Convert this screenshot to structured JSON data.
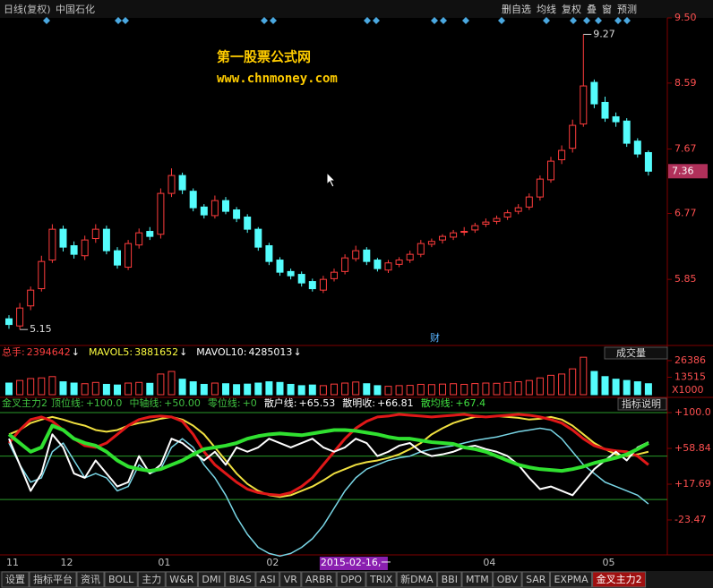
{
  "toolbar": {
    "period": "日线(复权)",
    "name": "中国石化",
    "buttons": [
      "删自选",
      "均线",
      "复权",
      "叠",
      "窗",
      "预测"
    ]
  },
  "watermark": [
    "第一股票公式网",
    "www.chnmoney.com"
  ],
  "chart_data": [
    {
      "type": "candlestick",
      "note": "财",
      "categories": [
        "11",
        null,
        null,
        null,
        null,
        "12",
        null,
        null,
        null,
        null,
        null,
        null,
        null,
        null,
        "01",
        null,
        null,
        null,
        null,
        null,
        null,
        null,
        null,
        null,
        "02",
        null,
        null,
        null,
        null,
        "2015-02-16,一",
        null,
        null,
        null,
        null,
        null,
        null,
        null,
        null,
        null,
        null,
        null,
        null,
        null,
        null,
        "04",
        null,
        null,
        null,
        null,
        null,
        null,
        null,
        null,
        null,
        null,
        "05",
        null,
        null,
        null,
        null
      ],
      "open": [
        5.3,
        5.2,
        5.48,
        5.72,
        6.12,
        6.55,
        6.32,
        6.18,
        6.42,
        6.55,
        6.25,
        6.02,
        6.33,
        6.52,
        6.48,
        7.05,
        7.3,
        7.08,
        6.86,
        6.74,
        6.95,
        6.82,
        6.72,
        6.55,
        6.32,
        6.12,
        5.96,
        5.92,
        5.82,
        5.7,
        5.86,
        5.96,
        6.14,
        6.26,
        6.12,
        5.98,
        6.06,
        6.12,
        6.2,
        6.34,
        6.4,
        6.44,
        6.52,
        6.54,
        6.62,
        6.66,
        6.72,
        6.8,
        6.86,
        7.0,
        7.24,
        7.52,
        7.68,
        8.02,
        8.6,
        8.32,
        8.12,
        8.06,
        7.78,
        7.62
      ],
      "high": [
        5.35,
        5.52,
        5.75,
        6.18,
        6.62,
        6.6,
        6.38,
        6.46,
        6.62,
        6.6,
        6.3,
        6.4,
        6.56,
        6.58,
        7.12,
        7.4,
        7.34,
        7.12,
        6.9,
        7.02,
        7.0,
        6.86,
        6.76,
        6.58,
        6.36,
        6.16,
        6.0,
        5.96,
        5.86,
        5.9,
        6.0,
        6.2,
        6.32,
        6.3,
        6.15,
        6.12,
        6.16,
        6.25,
        6.4,
        6.42,
        6.48,
        6.54,
        6.58,
        6.64,
        6.7,
        6.74,
        6.82,
        6.9,
        7.05,
        7.3,
        7.56,
        7.72,
        8.08,
        9.27,
        8.64,
        8.4,
        8.18,
        8.1,
        7.82,
        7.65
      ],
      "low": [
        5.16,
        5.15,
        5.42,
        5.68,
        6.08,
        6.24,
        6.14,
        6.12,
        6.36,
        6.2,
        6.0,
        5.98,
        6.28,
        6.4,
        6.42,
        7.0,
        7.04,
        6.8,
        6.7,
        6.7,
        6.76,
        6.65,
        6.5,
        6.25,
        6.05,
        5.9,
        5.85,
        5.75,
        5.68,
        5.66,
        5.82,
        5.92,
        6.1,
        6.05,
        5.96,
        5.94,
        6.02,
        6.08,
        6.16,
        6.3,
        6.35,
        6.4,
        6.46,
        6.5,
        6.58,
        6.62,
        6.68,
        6.76,
        6.82,
        6.95,
        7.2,
        7.46,
        7.62,
        7.98,
        8.24,
        8.05,
        7.98,
        7.7,
        7.55,
        7.3
      ],
      "close": [
        5.22,
        5.45,
        5.7,
        6.1,
        6.55,
        6.3,
        6.2,
        6.4,
        6.55,
        6.25,
        6.05,
        6.35,
        6.5,
        6.45,
        7.05,
        7.3,
        7.1,
        6.85,
        6.75,
        6.95,
        6.8,
        6.7,
        6.55,
        6.3,
        6.1,
        5.95,
        5.9,
        5.8,
        5.72,
        5.85,
        5.95,
        6.15,
        6.25,
        6.1,
        6.0,
        6.08,
        6.12,
        6.2,
        6.35,
        6.38,
        6.45,
        6.5,
        6.52,
        6.6,
        6.65,
        6.7,
        6.78,
        6.85,
        7.0,
        7.25,
        7.5,
        7.65,
        8.0,
        8.55,
        8.3,
        8.1,
        8.05,
        7.75,
        7.6,
        7.36
      ],
      "ylim": [
        4.94,
        9.5
      ],
      "yticks": [
        5.85,
        6.77,
        7.67,
        8.59,
        {
          "value": 9.5,
          "label": "9.50"
        }
      ],
      "up_color": "#ff3c3c",
      "down_color": "#54fcfc"
    },
    {
      "type": "bar",
      "selector": "成交量",
      "unit": "X1000",
      "header": [
        {
          "name": "总手:",
          "value": 2394642,
          "arrow": "↓",
          "color": "#ff4040"
        },
        {
          "name": "MAVOL5:",
          "value": 3881652,
          "arrow": "↓",
          "color": "#ffff40"
        },
        {
          "name": "MAVOL10:",
          "value": 4285013,
          "arrow": "↓",
          "color": "#ffffff"
        }
      ],
      "values": [
        9000,
        11000,
        12500,
        13000,
        14000,
        10000,
        9000,
        8500,
        9500,
        8000,
        7500,
        9000,
        9500,
        8800,
        16000,
        18000,
        12000,
        10000,
        8000,
        9000,
        8500,
        7800,
        8200,
        9000,
        10000,
        9500,
        8000,
        7000,
        7500,
        7000,
        8200,
        9000,
        9800,
        8500,
        7000,
        6500,
        7000,
        7200,
        8000,
        7800,
        8200,
        8500,
        8000,
        8600,
        9000,
        8800,
        9500,
        10000,
        11000,
        13000,
        15000,
        16000,
        20000,
        29000,
        18000,
        14000,
        12000,
        11000,
        10000,
        8500
      ],
      "ylim": [
        0,
        29800
      ],
      "yticks": [
        13515,
        26386
      ]
    },
    {
      "type": "line",
      "title": "金叉主力2",
      "button": "指标说明",
      "header": [
        {
          "name": "顶位线:",
          "value": 100,
          "label": "+100.0",
          "color": "#40c040",
          "ref": true
        },
        {
          "name": "中轴线:",
          "value": 50,
          "label": "+50.00",
          "color": "#40c040",
          "ref": true
        },
        {
          "name": "零位线:",
          "value": 0,
          "label": "+0",
          "color": "#40c040",
          "ref": true
        },
        {
          "name": "散户线:",
          "value": 65.53,
          "label": "+65.53",
          "color": "#ffffff"
        },
        {
          "name": "散明收:",
          "value": 66.81,
          "label": "+66.81",
          "color": "#ffffff"
        },
        {
          "name": "散均线:",
          "value": 67.4,
          "label": "+67.4",
          "color": "#40e040"
        }
      ],
      "series": [
        {
          "color": "#79d6e6",
          "width": 1.5,
          "values": [
            65,
            40,
            20,
            25,
            55,
            65,
            45,
            25,
            30,
            25,
            10,
            15,
            40,
            30,
            35,
            60,
            70,
            60,
            40,
            25,
            5,
            -20,
            -40,
            -55,
            -62,
            -65,
            -62,
            -55,
            -45,
            -30,
            -10,
            10,
            25,
            35,
            40,
            45,
            48,
            50,
            55,
            58,
            60,
            62,
            65,
            68,
            70,
            72,
            75,
            78,
            80,
            82,
            80,
            70,
            55,
            40,
            30,
            20,
            15,
            10,
            5,
            -5
          ]
        },
        {
          "color": "#f0e040",
          "width": 2,
          "values": [
            75,
            80,
            88,
            92,
            95,
            92,
            88,
            85,
            80,
            78,
            80,
            85,
            88,
            90,
            93,
            95,
            92,
            85,
            75,
            60,
            45,
            30,
            18,
            10,
            5,
            3,
            5,
            10,
            15,
            22,
            30,
            35,
            40,
            43,
            45,
            48,
            52,
            58,
            65,
            75,
            82,
            88,
            92,
            95,
            95,
            96,
            95,
            94,
            92,
            93,
            95,
            92,
            85,
            75,
            65,
            58,
            52,
            50,
            52,
            55
          ]
        },
        {
          "color": "#e01818",
          "width": 3,
          "values": [
            65,
            80,
            92,
            95,
            90,
            80,
            70,
            62,
            60,
            65,
            75,
            85,
            92,
            95,
            96,
            95,
            90,
            75,
            55,
            40,
            30,
            20,
            12,
            8,
            6,
            5,
            8,
            15,
            25,
            40,
            55,
            70,
            82,
            90,
            95,
            96,
            98,
            97,
            96,
            95,
            96,
            97,
            98,
            96,
            95,
            96,
            97,
            98,
            97,
            95,
            92,
            88,
            80,
            70,
            62,
            58,
            56,
            55,
            50,
            40
          ]
        },
        {
          "color": "#ffffff",
          "width": 2,
          "values": [
            70,
            40,
            10,
            30,
            75,
            60,
            30,
            25,
            45,
            30,
            15,
            20,
            50,
            30,
            40,
            70,
            65,
            55,
            45,
            55,
            40,
            60,
            55,
            60,
            70,
            65,
            60,
            65,
            70,
            60,
            55,
            60,
            70,
            65,
            50,
            55,
            62,
            65,
            55,
            50,
            52,
            55,
            60,
            62,
            58,
            55,
            50,
            40,
            25,
            12,
            15,
            10,
            5,
            20,
            35,
            45,
            55,
            45,
            60,
            66
          ]
        },
        {
          "color": "#30e030",
          "width": 4,
          "values": [
            75,
            65,
            55,
            60,
            85,
            80,
            70,
            65,
            62,
            55,
            45,
            38,
            35,
            33,
            35,
            40,
            45,
            52,
            58,
            60,
            62,
            65,
            70,
            73,
            75,
            76,
            75,
            74,
            76,
            78,
            80,
            80,
            79,
            77,
            75,
            72,
            70,
            70,
            68,
            66,
            65,
            64,
            60,
            58,
            55,
            50,
            45,
            40,
            37,
            35,
            34,
            33,
            35,
            38,
            42,
            45,
            48,
            52,
            58,
            65
          ]
        }
      ],
      "ylim": [
        -65.7,
        109.3
      ],
      "yticks": [
        {
          "value": -23.47,
          "label": "-23.47"
        },
        {
          "value": 17.69,
          "label": "+17.69"
        },
        {
          "value": 58.84,
          "label": "+58.84"
        },
        {
          "value": 100,
          "label": "+100.0"
        }
      ]
    }
  ],
  "tabs": [
    "设置",
    "指标平台",
    "资讯",
    "BOLL",
    "主力",
    "W&R",
    "DMI",
    "BIAS",
    "ASI",
    "VR",
    "ARBR",
    "DPO",
    "TRIX",
    "新DMA",
    "BBI",
    "MTM",
    "OBV",
    "SAR",
    "EXPMA",
    "金叉主力2"
  ],
  "active_tab": "金叉主力2"
}
